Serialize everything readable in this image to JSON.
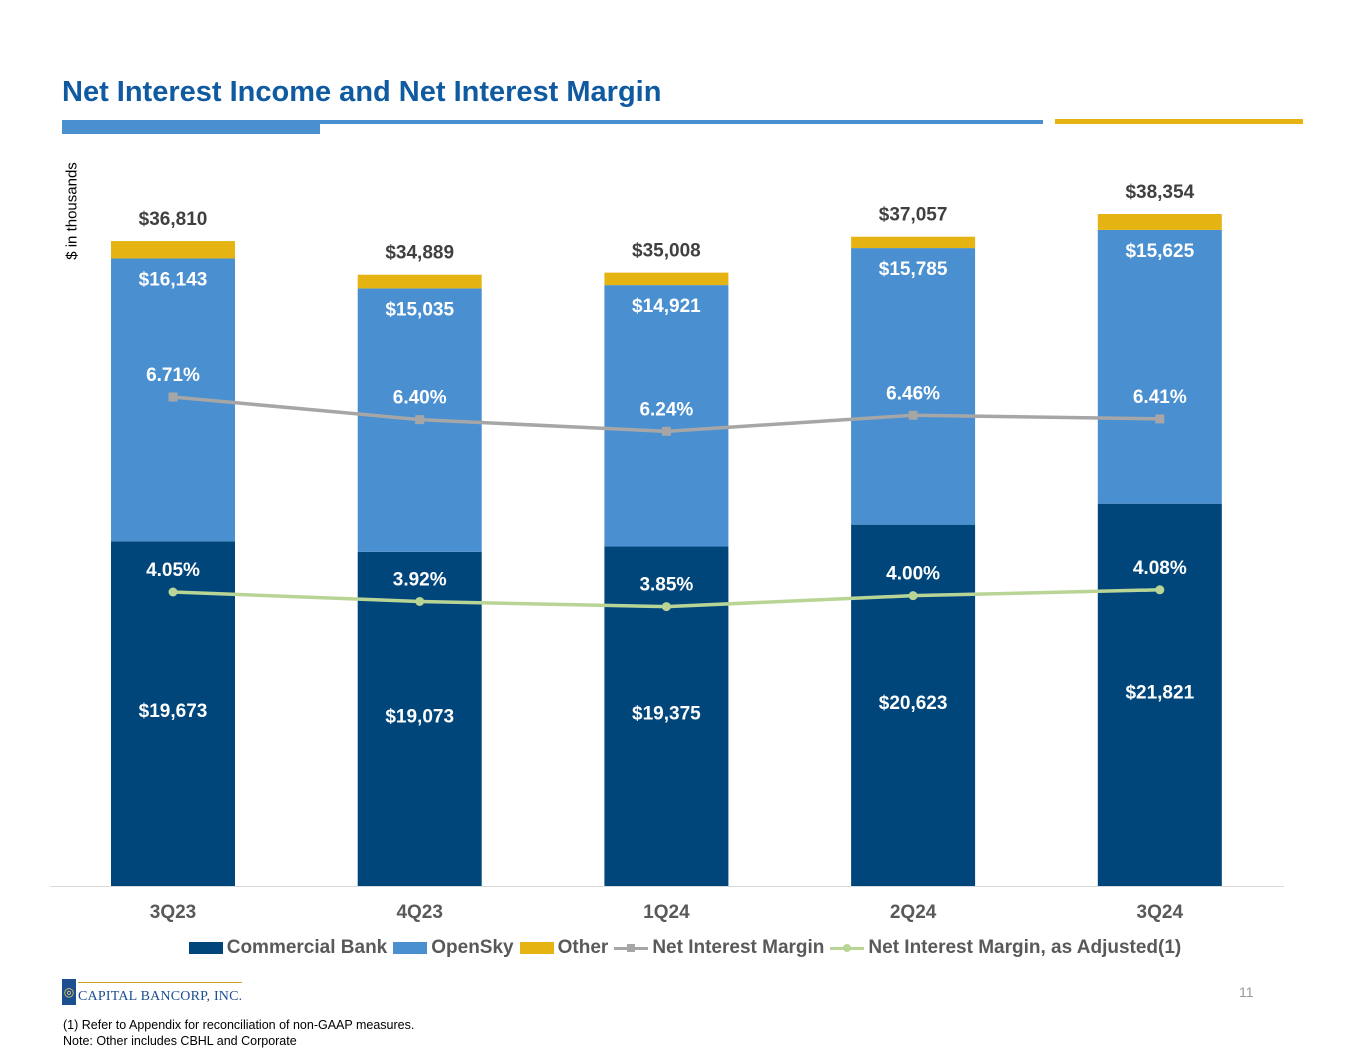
{
  "header": {
    "title": "Net Interest Income and Net Interest Margin"
  },
  "colors": {
    "commercial_bank": "#00467a",
    "opensky": "#4a8fd0",
    "other": "#e5b412",
    "nim": "#a6a6a6",
    "nim_adjusted": "#b9d596",
    "title": "#0f5aa0"
  },
  "chart_data": {
    "type": "bar",
    "stacked": true,
    "title": "Net Interest Income and Net Interest Margin",
    "ylabel": "$ in thousands",
    "categories": [
      "3Q23",
      "4Q23",
      "1Q24",
      "2Q24",
      "3Q24"
    ],
    "series": [
      {
        "name": "Commercial Bank",
        "type": "bar",
        "values": [
          19673,
          19073,
          19375,
          20623,
          21821
        ],
        "labels": [
          "$19,673",
          "$19,073",
          "$19,375",
          "$20,623",
          "$21,821"
        ]
      },
      {
        "name": "OpenSky",
        "type": "bar",
        "values": [
          16143,
          15035,
          14921,
          15785,
          15625
        ],
        "labels": [
          "$16,143",
          "$15,035",
          "$14,921",
          "$15,785",
          "$15,625"
        ]
      },
      {
        "name": "Other",
        "type": "bar",
        "values": [
          994,
          781,
          712,
          649,
          908
        ]
      },
      {
        "name": "Net Interest Margin",
        "type": "line",
        "values": [
          6.71,
          6.4,
          6.24,
          6.46,
          6.41
        ],
        "labels": [
          "6.71%",
          "6.40%",
          "6.24%",
          "6.46%",
          "6.41%"
        ]
      },
      {
        "name": "Net Interest Margin, as Adjusted(1)",
        "type": "line",
        "values": [
          4.05,
          3.92,
          3.85,
          4.0,
          4.08
        ],
        "labels": [
          "4.05%",
          "3.92%",
          "3.85%",
          "4.00%",
          "4.08%"
        ]
      }
    ],
    "totals": [
      36810,
      34889,
      35008,
      37057,
      38354
    ],
    "total_labels": [
      "$36,810",
      "$34,889",
      "$35,008",
      "$37,057",
      "$38,354"
    ],
    "legend": [
      "Commercial Bank",
      "OpenSky",
      "Other",
      "Net Interest Margin",
      "Net Interest Margin, as Adjusted(1)"
    ],
    "legend_position": "bottom"
  },
  "footer": {
    "logo_text": "CAPITAL BANCORP, INC.",
    "page_number": "11",
    "note1": "(1) Refer to Appendix for reconciliation of non-GAAP measures.",
    "note2": "Note: Other includes CBHL and Corporate"
  }
}
